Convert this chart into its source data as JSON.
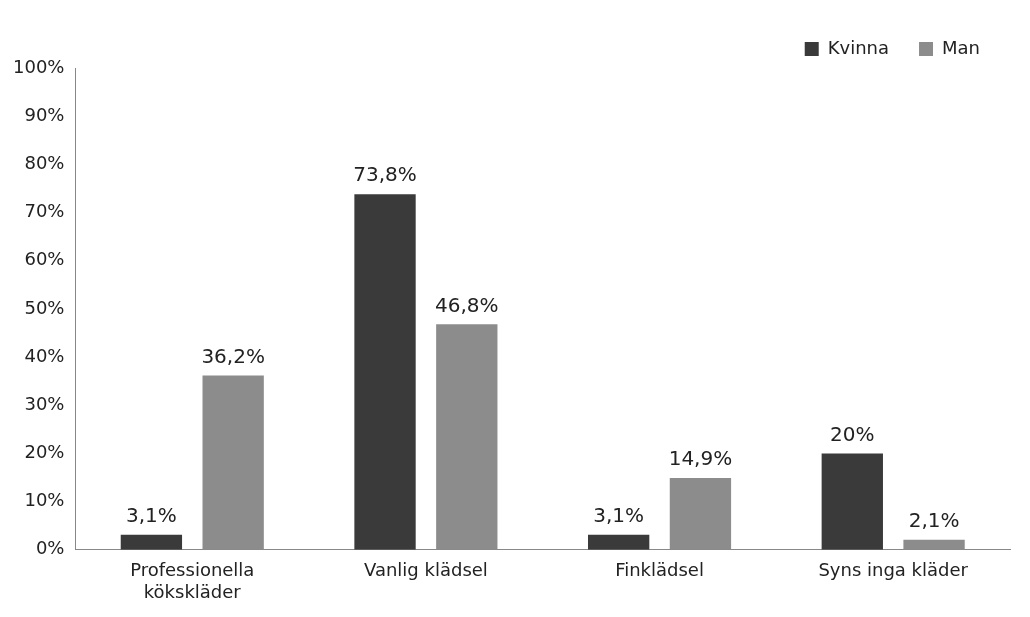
{
  "chart_data": {
    "type": "bar",
    "categories": [
      "Professionella kökskläder",
      "Vanlig klädsel",
      "Finklädsel",
      "Syns inga kläder"
    ],
    "series": [
      {
        "name": "Kvinna",
        "color": "#3a3a3a",
        "values": [
          3.1,
          73.8,
          3.1,
          20
        ],
        "value_labels": [
          "3,1%",
          "73,8%",
          "3,1%",
          "20%"
        ]
      },
      {
        "name": "Man",
        "color": "#8c8c8c",
        "values": [
          36.2,
          46.8,
          14.9,
          2.1
        ],
        "value_labels": [
          "36,2%",
          "46,8%",
          "14,9%",
          "2,1%"
        ]
      }
    ],
    "ylim": [
      0,
      100
    ],
    "yticks": [
      {
        "value": 0,
        "label": "0%"
      },
      {
        "value": 10,
        "label": "10%"
      },
      {
        "value": 20,
        "label": "20%"
      },
      {
        "value": 30,
        "label": "30%"
      },
      {
        "value": 40,
        "label": "40%"
      },
      {
        "value": 50,
        "label": "50%"
      },
      {
        "value": 60,
        "label": "60%"
      },
      {
        "value": 70,
        "label": "70%"
      },
      {
        "value": 80,
        "label": "80%"
      },
      {
        "value": 90,
        "label": "90%"
      },
      {
        "value": 100,
        "label": "100%"
      }
    ],
    "legend": "top right",
    "grid": false
  }
}
